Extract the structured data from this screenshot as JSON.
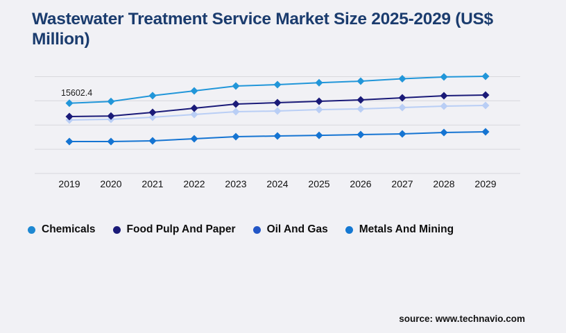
{
  "page": {
    "background": "#F1F1F5",
    "title": "Wastewater Treatment Service Market Size 2025-2029 (US$ Million)",
    "title_color": "#1B3C6E",
    "source": "source: www.technavio.com"
  },
  "chart_data": {
    "type": "line",
    "title": "Wastewater Treatment Service Market Size 2025-2029 (US$ Million)",
    "categories": [
      "2019",
      "2020",
      "2021",
      "2022",
      "2023",
      "2024",
      "2025",
      "2026",
      "2027",
      "2028",
      "2029"
    ],
    "series": [
      {
        "name": "Chemicals",
        "color": "#2196D9",
        "legend_color": "#1E88D2",
        "marker": "diamond",
        "values": [
          15602.4,
          15900,
          16850,
          17650,
          18450,
          18680,
          19000,
          19250,
          19650,
          19950,
          20050
        ]
      },
      {
        "name": "Food Pulp And Paper",
        "color": "#1A1A78",
        "legend_color": "#1A1A78",
        "marker": "diamond",
        "values": [
          13400,
          13500,
          14090,
          14780,
          15470,
          15700,
          15930,
          16150,
          16500,
          16840,
          16960
        ]
      },
      {
        "name": "Oil And Gas",
        "color": "#B9CEF5",
        "legend_color": "#2356C6",
        "marker": "diamond",
        "values": [
          12830,
          12940,
          13290,
          13750,
          14200,
          14320,
          14550,
          14660,
          14890,
          15120,
          15240
        ]
      },
      {
        "name": "Metals And Mining",
        "color": "#1574D2",
        "legend_color": "#1478D2",
        "marker": "diamond",
        "values": [
          9270,
          9270,
          9390,
          9730,
          10080,
          10190,
          10300,
          10420,
          10540,
          10770,
          10880
        ]
      }
    ],
    "ylim": [
      4000,
      21200
    ],
    "gridlines": [
      4000,
      8000,
      12000,
      16000,
      20000
    ],
    "gridline_color": "#D8D8DD",
    "axis_label_color": "#111111",
    "y_axis_labels_visible": false,
    "legend_position": "bottom",
    "annotation": {
      "series": "Chemicals",
      "category": "2019",
      "label": "15602.4"
    }
  }
}
